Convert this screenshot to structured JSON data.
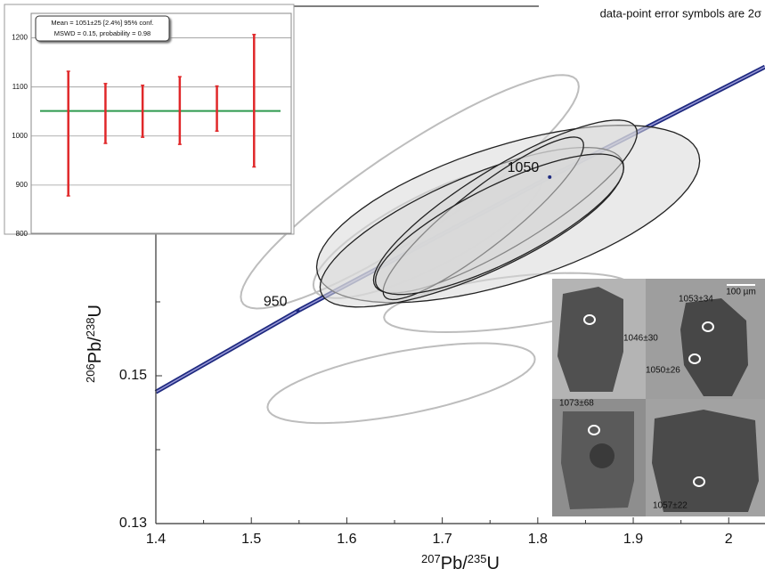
{
  "chart_data": [
    {
      "type": "concordia",
      "annotation": "data-point error symbols are 2σ",
      "x_label": [
        "207",
        "Pb/",
        "235",
        "U"
      ],
      "y_label": [
        "206",
        "Pb/",
        "238",
        "U"
      ],
      "xlim": [
        1.4,
        2.038
      ],
      "ylim": [
        0.13,
        0.2
      ],
      "xticks": [
        1.4,
        1.5,
        1.6,
        1.7,
        1.8,
        1.9,
        2.0
      ],
      "yticks": [
        0.13,
        0.15
      ],
      "xminorticks": [
        1.45,
        1.55,
        1.65,
        1.75,
        1.85,
        1.95
      ],
      "yminorticks": [
        0.14,
        0.16,
        0.17,
        0.18,
        0.19
      ],
      "concordia": {
        "color": "#1f2a80",
        "x": [
          1.4,
          1.5488,
          1.8125,
          2.038
        ],
        "y": [
          0.1478,
          0.15879,
          0.17689,
          0.1918
        ]
      },
      "ages": [
        {
          "age": 950,
          "x": 1.5488,
          "y": 0.15879
        },
        {
          "age": 1050,
          "x": 1.8125,
          "y": 0.17689
        }
      ],
      "rejected": {
        "color": "#bdbdbd",
        "x": [
          1.666,
          1.657,
          1.769,
          1.685
        ],
        "y": [
          0.1749,
          0.149,
          0.1599,
          0.1695
        ],
        "sx": [
          0.177,
          0.14,
          0.13,
          0.12
        ],
        "sy": [
          0.0158,
          0.0054,
          0.004,
          0.009
        ],
        "rho": [
          0.9,
          0.6,
          0.5,
          0.8
        ]
      },
      "accepted": {
        "color": "#222222",
        "fill": "#d9d9d9",
        "x": [
          1.769,
          1.731,
          1.766,
          1.743,
          1.76
        ],
        "y": [
          0.1719,
          0.1701,
          0.1729,
          0.1713,
          0.1705
        ],
        "sx": [
          0.2006,
          0.159,
          0.138,
          0.105,
          0.13
        ],
        "sy": [
          0.012,
          0.0108,
          0.0117,
          0.011,
          0.0095
        ],
        "rho": [
          0.6,
          0.75,
          0.85,
          0.9,
          0.8
        ]
      }
    },
    {
      "type": "errorbar",
      "legend": [
        "Mean = 1051±25  [2.4%]  95% conf.",
        "MSWD = 0.15, probability = 0.98"
      ],
      "mean": 1051,
      "mean_color": "#2e9a4e",
      "color": "#e0282a",
      "x": [
        1,
        2,
        3,
        4,
        5,
        6
      ],
      "xlim": [
        0,
        7
      ],
      "values": [
        1005,
        1046,
        1050.5,
        1052,
        1056,
        1072
      ],
      "errors": [
        127,
        61,
        53,
        69,
        46,
        135
      ],
      "ylim": [
        800,
        1250
      ],
      "yticks": [
        800,
        900,
        1000,
        1100,
        1200
      ],
      "grid": true
    }
  ],
  "cl_image": {
    "scale_bar": "100 µm",
    "spot_labels": [
      "1046±30",
      "1053±34",
      "1050±26",
      "1073±68",
      "1057±22"
    ]
  }
}
